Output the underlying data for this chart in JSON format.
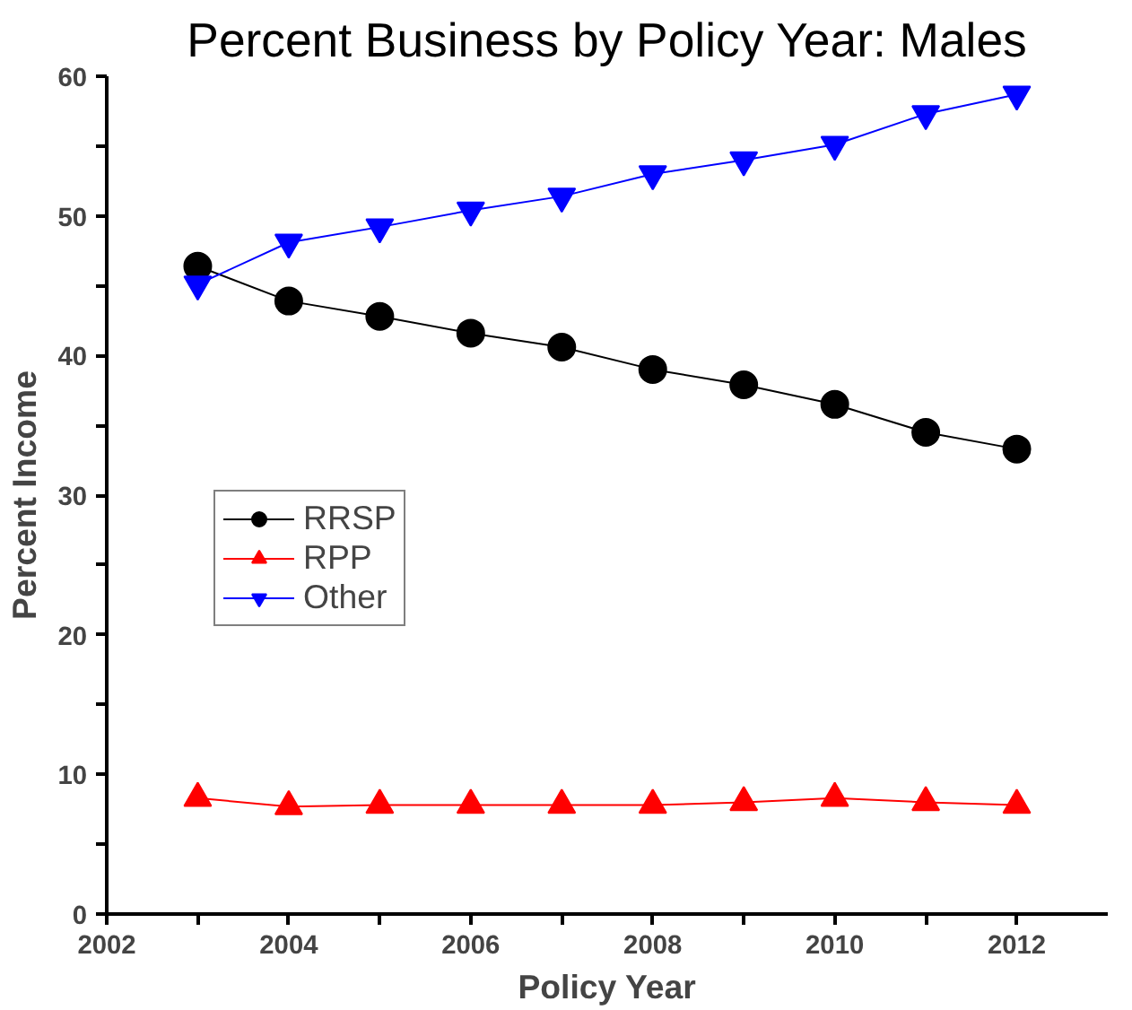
{
  "chart_data": {
    "type": "line",
    "title": "Percent Business by Policy Year: Males",
    "xlabel": "Policy Year",
    "ylabel": "Percent Income",
    "x": [
      2003,
      2004,
      2005,
      2006,
      2007,
      2008,
      2009,
      2010,
      2011,
      2012
    ],
    "series": [
      {
        "name": "RRSP",
        "color": "#000000",
        "marker": "circle",
        "values": [
          46.4,
          43.9,
          42.8,
          41.6,
          40.6,
          39.0,
          37.9,
          36.5,
          34.5,
          33.3
        ]
      },
      {
        "name": "RPP",
        "color": "#ff0000",
        "marker": "triangle",
        "values": [
          8.3,
          7.7,
          7.8,
          7.8,
          7.8,
          7.8,
          8.0,
          8.3,
          8.0,
          7.8
        ]
      },
      {
        "name": "Other",
        "color": "#0000ff",
        "marker": "triangle",
        "values": [
          45.1,
          48.1,
          49.2,
          50.4,
          51.4,
          53.0,
          54.0,
          55.1,
          57.3,
          58.7
        ]
      }
    ],
    "xlim": [
      2002,
      2013
    ],
    "ylim": [
      0,
      60
    ],
    "xticks": [
      2002,
      {
        "value": 2003,
        "label": null
      },
      2004,
      {
        "value": 2005,
        "label": null
      },
      2006,
      {
        "value": 2007,
        "label": null
      },
      2008,
      {
        "value": 2009,
        "label": null
      },
      2010,
      {
        "value": 2011,
        "label": null
      },
      2012
    ],
    "yticks": [
      0,
      {
        "value": 5,
        "label": null
      },
      10,
      {
        "value": 15,
        "label": null
      },
      20,
      {
        "value": 25,
        "label": null
      },
      30,
      {
        "value": 35,
        "label": null
      },
      40,
      {
        "value": 45,
        "label": null
      },
      50,
      {
        "value": 55,
        "label": null
      },
      60
    ],
    "grid": false,
    "legend": "left",
    "line_style": "solid"
  }
}
